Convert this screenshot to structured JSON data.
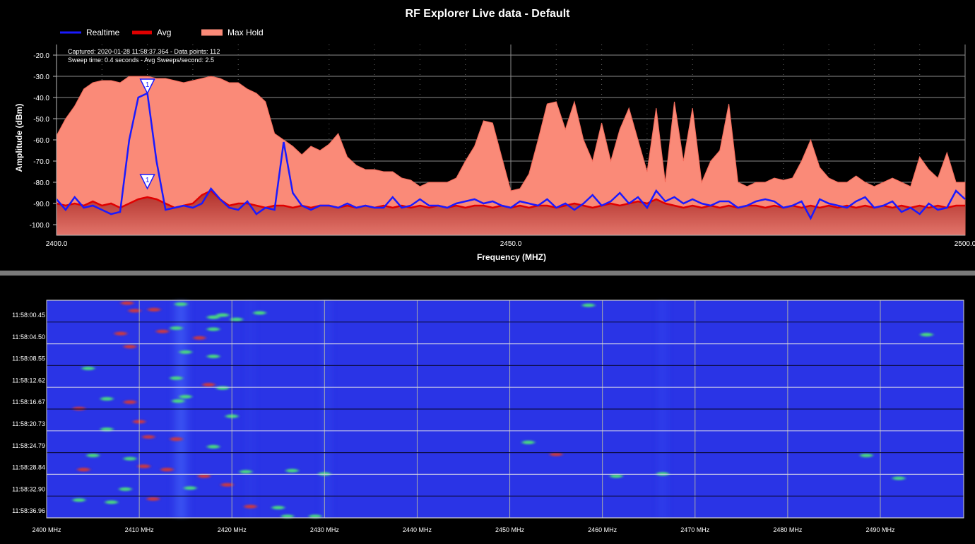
{
  "colors": {
    "realtime": "#1a1aff",
    "avg": "#e00000",
    "max_hold": "#fa8a78",
    "avg_fill": "#b0302a",
    "grid": "#8c8c8c",
    "waterfall_bg": "#2a34e6"
  },
  "info": {
    "captured": "Captured: 2020-01-28 11:58:37.364 - Data points: 112",
    "sweep": "Sweep time: 0.4 seconds - Avg Sweeps/second: 2.5"
  },
  "markers": [
    {
      "label": "1",
      "x": 2410.0,
      "y": -38
    },
    {
      "label": "1",
      "x": 2410.0,
      "y": -83
    }
  ],
  "chart_data": [
    {
      "type": "line",
      "title": "RF Explorer Live data - Default",
      "xlabel": "Frequency (MHZ)",
      "ylabel": "Amplitude (dBm)",
      "xlim": [
        2400,
        2500
      ],
      "ylim": [
        -105,
        -15
      ],
      "xticks": [
        "2400.0",
        "2450.0",
        "2500.0"
      ],
      "yticks": [
        "-20.0",
        "-30.0",
        "-40.0",
        "-50.0",
        "-60.0",
        "-70.0",
        "-80.0",
        "-90.0",
        "-100.0"
      ],
      "grid": true,
      "legend": "top-left",
      "series": [
        {
          "name": "Max Hold",
          "x": [
            2400,
            2401,
            2402,
            2403,
            2404,
            2405,
            2406,
            2407,
            2408,
            2409,
            2410,
            2411,
            2412,
            2413,
            2414,
            2415,
            2416,
            2417,
            2418,
            2419,
            2420,
            2421,
            2422,
            2423,
            2424,
            2425,
            2426,
            2427,
            2428,
            2429,
            2430,
            2431,
            2432,
            2433,
            2434,
            2435,
            2436,
            2437,
            2438,
            2439,
            2440,
            2441,
            2442,
            2443,
            2444,
            2445,
            2446,
            2447,
            2448,
            2449,
            2450,
            2451,
            2452,
            2453,
            2454,
            2455,
            2456,
            2457,
            2458,
            2459,
            2460,
            2461,
            2462,
            2463,
            2464,
            2465,
            2466,
            2467,
            2468,
            2469,
            2470,
            2471,
            2472,
            2473,
            2474,
            2475,
            2476,
            2477,
            2478,
            2479,
            2480,
            2481,
            2482,
            2483,
            2484,
            2485,
            2486,
            2487,
            2488,
            2489,
            2490,
            2491,
            2492,
            2493,
            2494,
            2495,
            2496,
            2497,
            2498,
            2499,
            2500
          ],
          "values": [
            -58,
            -50,
            -44,
            -36,
            -33,
            -32,
            -32,
            -33,
            -30,
            -30,
            -30,
            -31,
            -31,
            -32,
            -33,
            -32,
            -31,
            -30,
            -31,
            -33,
            -33,
            -36,
            -38,
            -42,
            -57,
            -60,
            -63,
            -67,
            -63,
            -65,
            -62,
            -57,
            -68,
            -72,
            -74,
            -74,
            -75,
            -75,
            -78,
            -79,
            -82,
            -80,
            -80,
            -80,
            -78,
            -70,
            -63,
            -51,
            -52,
            -68,
            -84,
            -83,
            -76,
            -60,
            -43,
            -42,
            -55,
            -42,
            -60,
            -70,
            -52,
            -70,
            -55,
            -45,
            -60,
            -75,
            -45,
            -80,
            -42,
            -70,
            -45,
            -80,
            -70,
            -65,
            -43,
            -80,
            -82,
            -80,
            -80,
            -78,
            -79,
            -78,
            -70,
            -60,
            -73,
            -78,
            -80,
            -80,
            -77,
            -80,
            -82,
            -80,
            -78,
            -80,
            -82,
            -68,
            -74,
            -78,
            -66,
            -80,
            -80
          ]
        },
        {
          "name": "Avg",
          "x": [
            2400,
            2401,
            2402,
            2403,
            2404,
            2405,
            2406,
            2407,
            2408,
            2409,
            2410,
            2411,
            2412,
            2413,
            2414,
            2415,
            2416,
            2417,
            2418,
            2419,
            2420,
            2421,
            2422,
            2423,
            2424,
            2425,
            2426,
            2427,
            2428,
            2429,
            2430,
            2431,
            2432,
            2433,
            2434,
            2435,
            2436,
            2437,
            2438,
            2439,
            2440,
            2441,
            2442,
            2443,
            2444,
            2445,
            2446,
            2447,
            2448,
            2449,
            2450,
            2451,
            2452,
            2453,
            2454,
            2455,
            2456,
            2457,
            2458,
            2459,
            2460,
            2461,
            2462,
            2463,
            2464,
            2465,
            2466,
            2467,
            2468,
            2469,
            2470,
            2471,
            2472,
            2473,
            2474,
            2475,
            2476,
            2477,
            2478,
            2479,
            2480,
            2481,
            2482,
            2483,
            2484,
            2485,
            2486,
            2487,
            2488,
            2489,
            2490,
            2491,
            2492,
            2493,
            2494,
            2495,
            2496,
            2497,
            2498,
            2499,
            2500
          ],
          "values": [
            -90,
            -91,
            -90,
            -91,
            -89,
            -91,
            -90,
            -92,
            -90,
            -88,
            -87,
            -88,
            -90,
            -92,
            -91,
            -90,
            -86,
            -84,
            -88,
            -91,
            -90,
            -90,
            -91,
            -92,
            -91,
            -91,
            -92,
            -91,
            -92,
            -91,
            -91,
            -92,
            -91,
            -92,
            -91,
            -92,
            -91,
            -92,
            -91,
            -92,
            -91,
            -92,
            -91,
            -92,
            -91,
            -92,
            -91,
            -91,
            -92,
            -91,
            -92,
            -91,
            -92,
            -91,
            -91,
            -92,
            -91,
            -90,
            -91,
            -92,
            -91,
            -90,
            -91,
            -90,
            -89,
            -90,
            -88,
            -90,
            -91,
            -92,
            -91,
            -92,
            -91,
            -92,
            -91,
            -92,
            -91,
            -91,
            -92,
            -91,
            -92,
            -91,
            -92,
            -91,
            -92,
            -91,
            -92,
            -91,
            -92,
            -91,
            -92,
            -91,
            -92,
            -91,
            -92,
            -91,
            -92,
            -91,
            -92,
            -91,
            -91
          ]
        },
        {
          "name": "Realtime",
          "x": [
            2400,
            2401,
            2402,
            2403,
            2404,
            2405,
            2406,
            2407,
            2408,
            2409,
            2410,
            2411,
            2412,
            2413,
            2414,
            2415,
            2416,
            2417,
            2418,
            2419,
            2420,
            2421,
            2422,
            2423,
            2424,
            2425,
            2426,
            2427,
            2428,
            2429,
            2430,
            2431,
            2432,
            2433,
            2434,
            2435,
            2436,
            2437,
            2438,
            2439,
            2440,
            2441,
            2442,
            2443,
            2444,
            2445,
            2446,
            2447,
            2448,
            2449,
            2450,
            2451,
            2452,
            2453,
            2454,
            2455,
            2456,
            2457,
            2458,
            2459,
            2460,
            2461,
            2462,
            2463,
            2464,
            2465,
            2466,
            2467,
            2468,
            2469,
            2470,
            2471,
            2472,
            2473,
            2474,
            2475,
            2476,
            2477,
            2478,
            2479,
            2480,
            2481,
            2482,
            2483,
            2484,
            2485,
            2486,
            2487,
            2488,
            2489,
            2490,
            2491,
            2492,
            2493,
            2494,
            2495,
            2496,
            2497,
            2498,
            2499,
            2500
          ],
          "values": [
            -88,
            -93,
            -87,
            -92,
            -91,
            -93,
            -95,
            -94,
            -60,
            -40,
            -38,
            -70,
            -93,
            -92,
            -91,
            -92,
            -90,
            -83,
            -88,
            -92,
            -93,
            -89,
            -95,
            -92,
            -93,
            -61,
            -85,
            -91,
            -93,
            -91,
            -91,
            -92,
            -90,
            -92,
            -91,
            -92,
            -92,
            -87,
            -92,
            -91,
            -88,
            -91,
            -91,
            -92,
            -90,
            -89,
            -88,
            -90,
            -89,
            -91,
            -92,
            -89,
            -90,
            -91,
            -88,
            -92,
            -90,
            -93,
            -90,
            -86,
            -91,
            -89,
            -85,
            -90,
            -87,
            -92,
            -84,
            -89,
            -87,
            -90,
            -88,
            -90,
            -91,
            -89,
            -89,
            -92,
            -91,
            -89,
            -88,
            -89,
            -92,
            -91,
            -89,
            -97,
            -88,
            -90,
            -91,
            -92,
            -89,
            -87,
            -92,
            -91,
            -89,
            -94,
            -92,
            -95,
            -90,
            -93,
            -92,
            -84,
            -88
          ]
        }
      ]
    },
    {
      "type": "heatmap",
      "title": "",
      "xlabel": "",
      "ylabel": "",
      "x_tick_labels": [
        "2400 MHz",
        "2410 MHz",
        "2420 MHz",
        "2430 MHz",
        "2440 MHz",
        "2450 MHz",
        "2460 MHz",
        "2470 MHz",
        "2480 MHz",
        "2490 MHz"
      ],
      "x_tick_values": [
        2400,
        2410,
        2420,
        2430,
        2440,
        2450,
        2460,
        2470,
        2480,
        2490
      ],
      "xlim": [
        2400,
        2499
      ],
      "y_tick_labels": [
        "11:58:00.45",
        "11:58:04.50",
        "11:58:08.55",
        "11:58:12.62",
        "11:58:16.67",
        "11:58:20.73",
        "11:58:24.79",
        "11:58:28.84",
        "11:58:32.90",
        "11:58:36.96"
      ],
      "grid": true,
      "hotspots": [
        {
          "f": 2408.7,
          "row": 0.0,
          "level": "red"
        },
        {
          "f": 2409.5,
          "row": 0.35,
          "level": "red"
        },
        {
          "f": 2411.6,
          "row": 0.3,
          "level": "red"
        },
        {
          "f": 2414.5,
          "row": 0.05,
          "level": "green"
        },
        {
          "f": 2419.0,
          "row": 0.55,
          "level": "green"
        },
        {
          "f": 2418.0,
          "row": 0.65,
          "level": "green"
        },
        {
          "f": 2423.0,
          "row": 0.45,
          "level": "green"
        },
        {
          "f": 2420.5,
          "row": 0.75,
          "level": "green"
        },
        {
          "f": 2414.0,
          "row": 1.15,
          "level": "green"
        },
        {
          "f": 2418.0,
          "row": 1.2,
          "level": "green"
        },
        {
          "f": 2412.5,
          "row": 1.3,
          "level": "red"
        },
        {
          "f": 2416.5,
          "row": 1.6,
          "level": "red"
        },
        {
          "f": 2408.0,
          "row": 1.4,
          "level": "red"
        },
        {
          "f": 2415.0,
          "row": 2.25,
          "level": "green"
        },
        {
          "f": 2418.0,
          "row": 2.45,
          "level": "green"
        },
        {
          "f": 2409.0,
          "row": 2.0,
          "level": "red"
        },
        {
          "f": 2404.5,
          "row": 3.0,
          "level": "green"
        },
        {
          "f": 2414.0,
          "row": 3.45,
          "level": "green"
        },
        {
          "f": 2417.5,
          "row": 3.75,
          "level": "red"
        },
        {
          "f": 2419.0,
          "row": 3.9,
          "level": "green"
        },
        {
          "f": 2415.0,
          "row": 4.3,
          "level": "green"
        },
        {
          "f": 2406.5,
          "row": 4.4,
          "level": "green"
        },
        {
          "f": 2409.0,
          "row": 4.55,
          "level": "red"
        },
        {
          "f": 2414.2,
          "row": 4.5,
          "level": "green"
        },
        {
          "f": 2403.5,
          "row": 4.85,
          "level": "red"
        },
        {
          "f": 2420.0,
          "row": 5.2,
          "level": "green"
        },
        {
          "f": 2410.0,
          "row": 5.45,
          "level": "red"
        },
        {
          "f": 2406.5,
          "row": 5.8,
          "level": "green"
        },
        {
          "f": 2411.0,
          "row": 6.15,
          "level": "red"
        },
        {
          "f": 2414.0,
          "row": 6.25,
          "level": "red"
        },
        {
          "f": 2418.0,
          "row": 6.6,
          "level": "green"
        },
        {
          "f": 2405.0,
          "row": 7.0,
          "level": "green"
        },
        {
          "f": 2409.0,
          "row": 7.15,
          "level": "green"
        },
        {
          "f": 2404.0,
          "row": 7.65,
          "level": "red"
        },
        {
          "f": 2410.5,
          "row": 7.5,
          "level": "red"
        },
        {
          "f": 2413.0,
          "row": 7.65,
          "level": "red"
        },
        {
          "f": 2417.0,
          "row": 7.95,
          "level": "red"
        },
        {
          "f": 2421.5,
          "row": 7.75,
          "level": "green"
        },
        {
          "f": 2426.5,
          "row": 7.7,
          "level": "green"
        },
        {
          "f": 2419.5,
          "row": 8.35,
          "level": "red"
        },
        {
          "f": 2415.5,
          "row": 8.5,
          "level": "green"
        },
        {
          "f": 2408.5,
          "row": 8.55,
          "level": "green"
        },
        {
          "f": 2403.5,
          "row": 9.05,
          "level": "green"
        },
        {
          "f": 2407.0,
          "row": 9.15,
          "level": "green"
        },
        {
          "f": 2411.5,
          "row": 9.0,
          "level": "red"
        },
        {
          "f": 2422.0,
          "row": 9.35,
          "level": "red"
        },
        {
          "f": 2425.0,
          "row": 9.4,
          "level": "green"
        },
        {
          "f": 2426.0,
          "row": 9.8,
          "level": "green"
        },
        {
          "f": 2429.0,
          "row": 9.8,
          "level": "green"
        },
        {
          "f": 2430.0,
          "row": 7.85,
          "level": "green"
        },
        {
          "f": 2455.0,
          "row": 6.95,
          "level": "red"
        },
        {
          "f": 2452.0,
          "row": 6.4,
          "level": "green"
        },
        {
          "f": 2458.5,
          "row": 0.1,
          "level": "green"
        },
        {
          "f": 2461.5,
          "row": 7.95,
          "level": "green"
        },
        {
          "f": 2466.5,
          "row": 7.85,
          "level": "green"
        },
        {
          "f": 2495.0,
          "row": 1.45,
          "level": "green"
        },
        {
          "f": 2492.0,
          "row": 8.05,
          "level": "green"
        },
        {
          "f": 2488.5,
          "row": 7.0,
          "level": "green"
        }
      ]
    }
  ]
}
